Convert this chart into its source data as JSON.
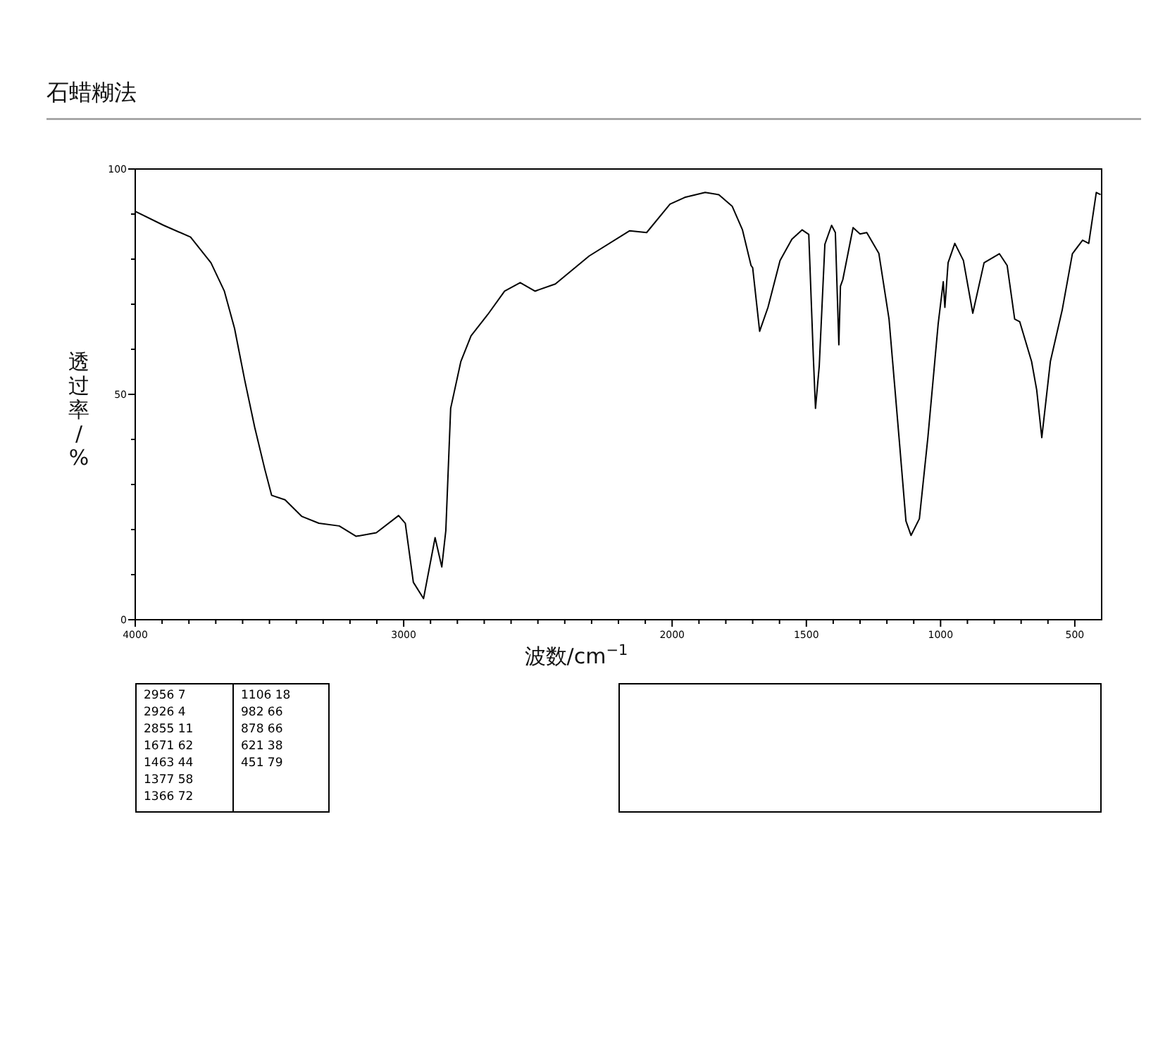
{
  "chart_data": {
    "type": "line",
    "title": "石蜡糊法",
    "xlabel": "波数/cm$^{−1}$",
    "ylabel": "透过率/%",
    "x": [
      4000,
      3894,
      3794,
      3718,
      3668,
      3630,
      3592,
      3555,
      3517,
      3492,
      3442,
      3379,
      3316,
      3240,
      3177,
      3102,
      3019,
      2994,
      2964,
      2926,
      2883,
      2858,
      2843,
      2825,
      2787,
      2749,
      2687,
      2624,
      2566,
      2511,
      2435,
      2309,
      2158,
      2095,
      2008,
      1953,
      1877,
      1826,
      1776,
      1738,
      1706,
      1700,
      1674,
      1643,
      1598,
      1554,
      1516,
      1491,
      1474,
      1466,
      1452,
      1431,
      1406,
      1392,
      1379,
      1373,
      1364,
      1326,
      1300,
      1275,
      1230,
      1192,
      1155,
      1129,
      1110,
      1079,
      1047,
      1009,
      990,
      984,
      972,
      947,
      915,
      880,
      838,
      781,
      752,
      724,
      705,
      661,
      642,
      623,
      591,
      547,
      509,
      471,
      448,
      420,
      404
    ],
    "series": [
      {
        "color": "#000000",
        "values": [
          90.6,
          87.5,
          84.9,
          79.2,
          72.9,
          64.6,
          53.1,
          42.7,
          33.3,
          27.6,
          26.6,
          22.9,
          21.4,
          20.8,
          18.5,
          19.3,
          23.1,
          21.4,
          8.3,
          4.7,
          18.2,
          11.7,
          19.8,
          46.9,
          57.3,
          63,
          67.7,
          72.9,
          74.8,
          72.9,
          74.5,
          80.7,
          86.3,
          85.9,
          92.2,
          93.7,
          94.8,
          94.3,
          91.7,
          86.5,
          78.6,
          78.1,
          64,
          69.3,
          79.7,
          84.4,
          86.5,
          85.5,
          58.3,
          46.9,
          56.3,
          83.3,
          87.5,
          85.9,
          61,
          74,
          75.5,
          87,
          85.6,
          85.9,
          81.3,
          66.7,
          40.6,
          21.9,
          18.7,
          22.4,
          40.6,
          65.6,
          75,
          69.3,
          79.2,
          83.5,
          79.7,
          68,
          79.2,
          81.2,
          78.6,
          66.7,
          66.1,
          57.3,
          51,
          40.4,
          57.3,
          68.7,
          81.2,
          84.2,
          83.5,
          94.8,
          94.3
        ]
      }
    ],
    "xlim": [
      4000,
      400
    ],
    "ylim": [
      0,
      100
    ],
    "xticks": [
      4000,
      {
        "value": 3900,
        "label": null
      },
      {
        "value": 3800,
        "label": null
      },
      {
        "value": 3700,
        "label": null
      },
      {
        "value": 3600,
        "label": null
      },
      {
        "value": 3500,
        "label": null
      },
      {
        "value": 3400,
        "label": null
      },
      {
        "value": 3300,
        "label": null
      },
      {
        "value": 3200,
        "label": null
      },
      {
        "value": 3100,
        "label": null
      },
      3000,
      {
        "value": 2900,
        "label": null
      },
      {
        "value": 2800,
        "label": null
      },
      {
        "value": 2700,
        "label": null
      },
      {
        "value": 2600,
        "label": null
      },
      {
        "value": 2500,
        "label": null
      },
      {
        "value": 2400,
        "label": null
      },
      {
        "value": 2300,
        "label": null
      },
      {
        "value": 2200,
        "label": null
      },
      {
        "value": 2100,
        "label": null
      },
      2000,
      {
        "value": 1900,
        "label": null
      },
      {
        "value": 1800,
        "label": null
      },
      {
        "value": 1700,
        "label": null
      },
      {
        "value": 1600,
        "label": null
      },
      1500,
      {
        "value": 1400,
        "label": null
      },
      {
        "value": 1300,
        "label": null
      },
      {
        "value": 1200,
        "label": null
      },
      {
        "value": 1100,
        "label": null
      },
      1000,
      {
        "value": 900,
        "label": null
      },
      {
        "value": 800,
        "label": null
      },
      {
        "value": 700,
        "label": null
      },
      {
        "value": 600,
        "label": null
      },
      500
    ],
    "yticks": [
      0,
      {
        "value": 10,
        "label": null
      },
      {
        "value": 20,
        "label": null
      },
      {
        "value": 30,
        "label": null
      },
      {
        "value": 40,
        "label": null
      },
      50,
      {
        "value": 60,
        "label": null
      },
      {
        "value": 70,
        "label": null
      },
      {
        "value": 80,
        "label": null
      },
      {
        "value": 90,
        "label": null
      },
      100
    ],
    "grid": false,
    "annotations": [
      "2956 7",
      "2926 4",
      "2855 11",
      "1671 62",
      "1463 44",
      "1377 58",
      "1366 72",
      "1106 18",
      "982 66",
      "878 66",
      "621 38",
      "451 79"
    ]
  }
}
